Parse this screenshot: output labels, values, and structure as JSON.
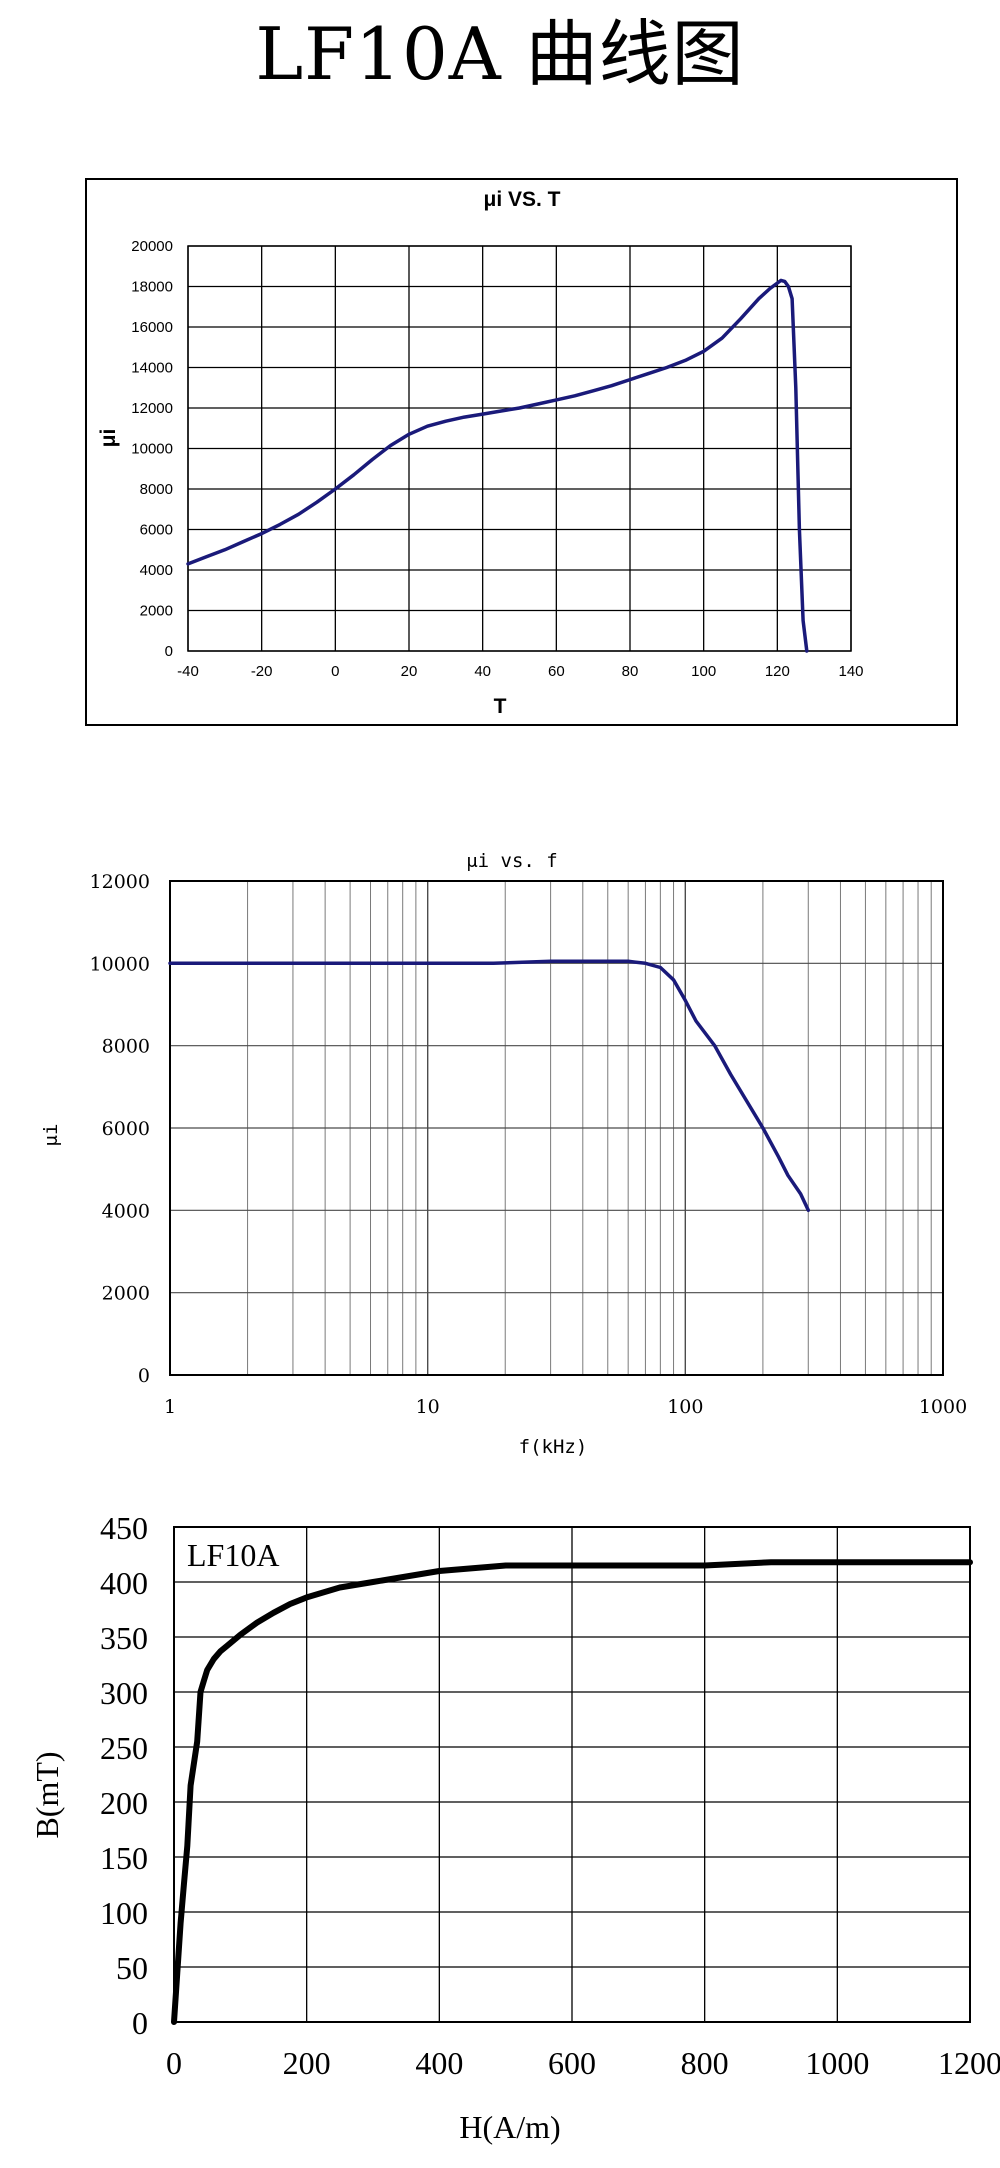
{
  "page": {
    "title": "LF10A 曲线图"
  },
  "chart_data": [
    {
      "type": "line",
      "title": "μi VS. T",
      "xlabel": "T",
      "ylabel": "μi",
      "xlim": [
        -40,
        140
      ],
      "ylim": [
        0,
        20000
      ],
      "xticks": [
        -40,
        -20,
        0,
        20,
        40,
        60,
        80,
        100,
        120,
        140
      ],
      "yticks": [
        0,
        2000,
        4000,
        6000,
        8000,
        10000,
        12000,
        14000,
        16000,
        18000,
        20000
      ],
      "grid": true,
      "line_color": "#1a1a7a",
      "series": [
        {
          "x": [
            -40,
            -35,
            -30,
            -25,
            -20,
            -15,
            -10,
            -5,
            0,
            5,
            10,
            15,
            20,
            25,
            30,
            35,
            40,
            45,
            50,
            55,
            60,
            65,
            70,
            75,
            80,
            85,
            90,
            95,
            100,
            105,
            110,
            115,
            118,
            121,
            122,
            123,
            124,
            125,
            126,
            127,
            128
          ],
          "y": [
            4300,
            4650,
            5000,
            5400,
            5800,
            6250,
            6750,
            7350,
            8000,
            8700,
            9450,
            10150,
            10700,
            11100,
            11350,
            11550,
            11700,
            11850,
            12000,
            12200,
            12400,
            12600,
            12850,
            13100,
            13400,
            13700,
            14000,
            14350,
            14800,
            15450,
            16400,
            17400,
            17900,
            18300,
            18250,
            18000,
            17400,
            13000,
            6000,
            1500,
            0
          ]
        }
      ]
    },
    {
      "type": "line",
      "title": "μi vs. f",
      "xlabel": "f(kHz)",
      "ylabel": "μi",
      "xscale": "log",
      "xlim": [
        1,
        1000
      ],
      "ylim": [
        0,
        12000
      ],
      "xticks": [
        1,
        10,
        100,
        1000
      ],
      "yticks": [
        0,
        2000,
        4000,
        6000,
        8000,
        10000,
        12000
      ],
      "grid": true,
      "line_color": "#1a1a7a",
      "series": [
        {
          "x": [
            1,
            2,
            5,
            10,
            18,
            30,
            45,
            60,
            70,
            80,
            90,
            100,
            110,
            130,
            150,
            200,
            230,
            250,
            280,
            300
          ],
          "y": [
            10000,
            10000,
            10000,
            10000,
            10000,
            10050,
            10050,
            10050,
            10000,
            9900,
            9600,
            9100,
            8600,
            8000,
            7300,
            6000,
            5300,
            4850,
            4400,
            4000
          ]
        }
      ]
    },
    {
      "type": "line",
      "title": "LF10A",
      "xlabel": "H(A/m)",
      "ylabel": "B(mT)",
      "xlim": [
        0,
        1200
      ],
      "ylim": [
        0,
        450
      ],
      "xticks": [
        0,
        200,
        400,
        600,
        800,
        1000,
        1200
      ],
      "yticks": [
        0,
        50,
        100,
        150,
        200,
        250,
        300,
        350,
        400,
        450
      ],
      "grid": true,
      "line_color": "#000000",
      "series": [
        {
          "x": [
            0,
            5,
            10,
            15,
            20,
            25,
            30,
            35,
            40,
            45,
            50,
            60,
            70,
            80,
            100,
            125,
            150,
            175,
            200,
            250,
            300,
            350,
            400,
            500,
            600,
            700,
            800,
            900,
            1000,
            1100,
            1200
          ],
          "y": [
            0,
            45,
            90,
            125,
            160,
            215,
            235,
            255,
            300,
            310,
            320,
            330,
            337,
            342,
            352,
            363,
            372,
            380,
            386,
            395,
            400,
            405,
            410,
            415,
            415,
            415,
            415,
            418,
            418,
            418,
            418
          ]
        }
      ]
    }
  ]
}
